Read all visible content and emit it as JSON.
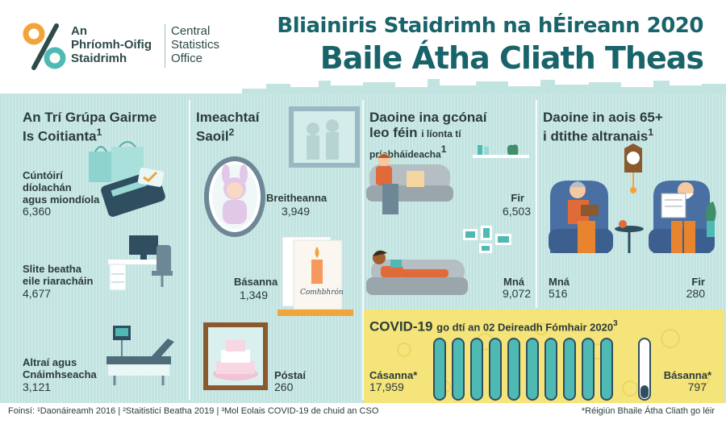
{
  "logo": {
    "ga_line1": "An",
    "ga_line2": "Phríomh-Oifig",
    "ga_line3": "Staidrimh",
    "en_line1": "Central",
    "en_line2": "Statistics",
    "en_line3": "Office"
  },
  "title": {
    "line1": "Bliainiris Staidrimh na hÉireann 2020",
    "line2": "Baile Átha Cliath Theas"
  },
  "occupations": {
    "heading_line1": "An Trí Grúpa Gairme",
    "heading_line2": "Is Coitianta",
    "heading_sup": "1",
    "items": [
      {
        "label_line1": "Cúntóirí",
        "label_line2": "díolachán",
        "label_line3": "agus miondíola",
        "value": "6,360",
        "icon": "card-payment-icon"
      },
      {
        "label_line1": "Slite beatha",
        "label_line2": "eile riaracháin",
        "value": "4,677",
        "icon": "office-desk-icon"
      },
      {
        "label_line1": "Altraí agus",
        "label_line2": "Cnáimhseacha",
        "value": "3,121",
        "icon": "hospital-bed-icon"
      }
    ]
  },
  "life_events": {
    "heading_line1": "Imeachtaí",
    "heading_line2": "Saoil",
    "heading_sup": "2",
    "births_label": "Breitheanna",
    "births_value": "3,949",
    "deaths_label": "Básanna",
    "deaths_value": "1,349",
    "marriages_label": "Póstaí",
    "marriages_value": "260",
    "condolence_text": "Comhbhrón"
  },
  "living_alone": {
    "heading_line1": "Daoine ina gcónaí",
    "heading_line2": "leo féin",
    "heading_line2_small": "i líonta tí",
    "heading_line3": "príobháideacha",
    "heading_sup": "1",
    "men_label": "Fir",
    "men_value": "6,503",
    "women_label": "Mná",
    "women_value": "9,072"
  },
  "nursing_homes": {
    "heading_line1": "Daoine in aois 65+",
    "heading_line2": "i dtithe altranais",
    "heading_sup": "1",
    "women_label": "Mná",
    "women_value": "516",
    "men_label": "Fir",
    "men_value": "280"
  },
  "covid": {
    "title_bold": "COVID-19",
    "title_rest": "go dtí an 02 Deireadh Fómhair 2020",
    "title_sup": "3",
    "cases_label": "Cásanna*",
    "cases_value": "17,959",
    "deaths_label": "Básanna*",
    "deaths_value": "797"
  },
  "footer": {
    "sources": "Foinsí: ¹Daonáireamh 2016 | ²Staitisticí Beatha 2019 | ³Mol Eolais COVID-19 de chuid an CSO",
    "note": "*Réigiún Bhaile Átha Cliath go léir"
  },
  "colors": {
    "teal_dark": "#19636a",
    "panel_bg": "#c2e4e1",
    "covid_bg": "#f5e47a",
    "logo_orange": "#f2a33a",
    "logo_teal": "#4fbab4"
  }
}
